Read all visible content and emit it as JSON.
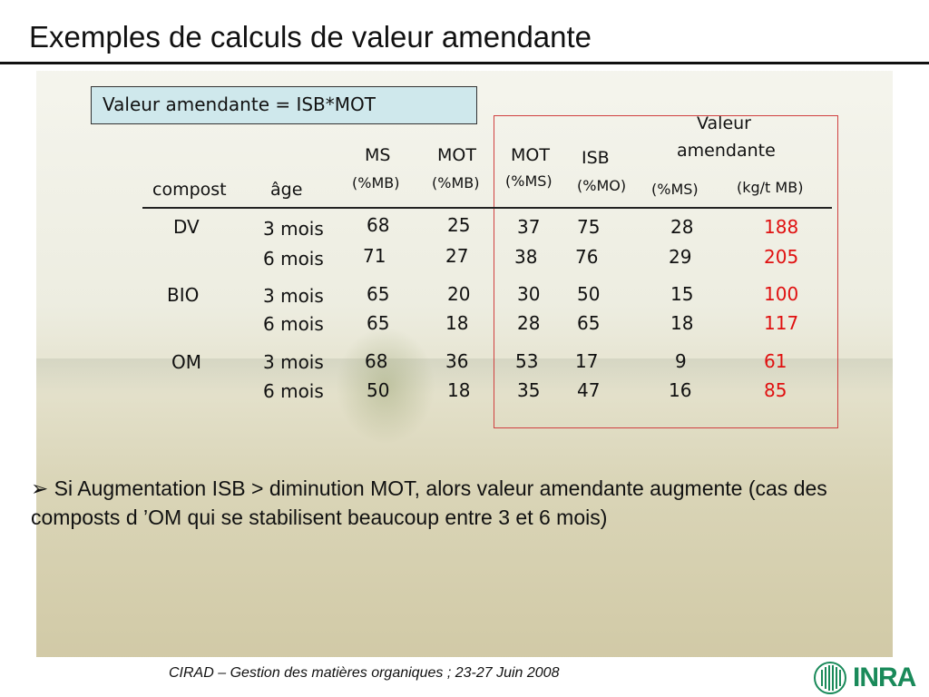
{
  "title": "Exemples de calculs de valeur amendante",
  "formula": "Valeur amendante = ISB*MOT",
  "headers": {
    "compost": "compost",
    "age": "âge",
    "ms": "MS",
    "ms_unit": "(%MB)",
    "mot_mb": "MOT",
    "mot_mb_unit": "(%MB)",
    "mot_ms": "MOT",
    "mot_ms_unit": "(%MS)",
    "isb": "ISB",
    "isb_unit": "(%MO)",
    "va_title_1": "Valeur",
    "va_title_2": "amendante",
    "va_ms_unit": "(%MS)",
    "va_kg_unit": "(kg/t MB)"
  },
  "rows": [
    {
      "compost": "DV",
      "age": "3 mois",
      "ms": "68",
      "mot_mb": "25",
      "mot_ms": "37",
      "isb": "75",
      "va_ms": "28",
      "va_kg": "188"
    },
    {
      "compost": "",
      "age": "6 mois",
      "ms": "71",
      "mot_mb": "27",
      "mot_ms": "38",
      "isb": "76",
      "va_ms": "29",
      "va_kg": "205"
    },
    {
      "compost": "BIO",
      "age": "3 mois",
      "ms": "65",
      "mot_mb": "20",
      "mot_ms": "30",
      "isb": "50",
      "va_ms": "15",
      "va_kg": "100"
    },
    {
      "compost": "",
      "age": "6 mois",
      "ms": "65",
      "mot_mb": "18",
      "mot_ms": "28",
      "isb": "65",
      "va_ms": "18",
      "va_kg": "117"
    },
    {
      "compost": "OM",
      "age": "3 mois",
      "ms": "68",
      "mot_mb": "36",
      "mot_ms": "53",
      "isb": "17",
      "va_ms": "9",
      "va_kg": "61"
    },
    {
      "compost": "",
      "age": "6 mois",
      "ms": "50",
      "mot_mb": "18",
      "mot_ms": "35",
      "isb": "47",
      "va_ms": "16",
      "va_kg": "85"
    }
  ],
  "bullet": {
    "symbol": "➢",
    "text": "Si Augmentation ISB > diminution MOT, alors valeur amendante augmente (cas des composts d ’OM qui se stabilisent beaucoup entre 3 et 6 mois)"
  },
  "footer": "CIRAD – Gestion des matières organiques ; 23-27 Juin 2008",
  "logo": {
    "text": "INRA",
    "color": "#1a8a5a",
    "icon": "inra-logo-icon"
  },
  "colors": {
    "highlight_red": "#e01010",
    "formula_bg": "#cfe8ec",
    "box_border": "#d04040"
  }
}
